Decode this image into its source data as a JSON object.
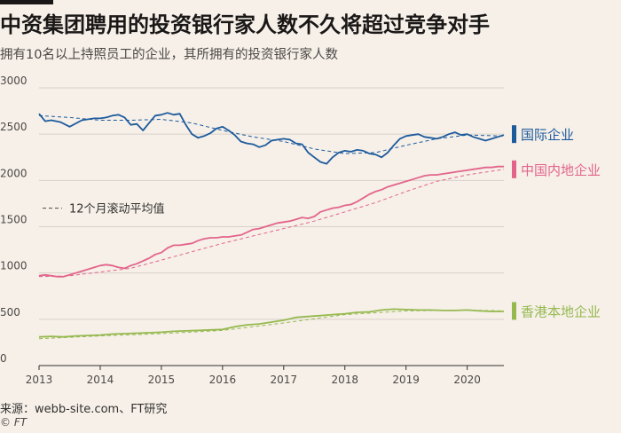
{
  "header": {
    "title": "中资集团聘用的投资银行家人数不久将超过竞争对手",
    "subtitle": "拥有10名以上持照员工的企业，其所拥有的投资银行家人数"
  },
  "footer": {
    "source": "来源：webb-site.com、FT研究",
    "credit": "© FT"
  },
  "chart_data": {
    "type": "line",
    "title": "中资集团聘用的投资银行家人数不久将超过竞争对手",
    "subtitle": "拥有10名以上持照员工的企业，其所拥有的投资银行家人数",
    "xlabel": "",
    "ylabel": "",
    "xlim": [
      2013,
      2020.6
    ],
    "ylim": [
      0,
      3000
    ],
    "x_ticks": [
      "2013",
      "2014",
      "2015",
      "2016",
      "2017",
      "2018",
      "2019",
      "2020"
    ],
    "y_ticks": [
      "0",
      "500",
      "1000",
      "1500",
      "2000",
      "2500",
      "3000"
    ],
    "grid": "horizontal",
    "legend": {
      "label": "12个月滚动平均值",
      "placement": "top-left"
    },
    "colors": {
      "intl": "#1d5a9c",
      "mainland": "#e3648a",
      "hk": "#96b94f",
      "grid": "#d8d1ca",
      "axis": "#33302e"
    },
    "series": [
      {
        "name": "国际企业",
        "color": "#1d5a9c",
        "x": [
          2013.0,
          2013.1,
          2013.2,
          2013.35,
          2013.5,
          2013.7,
          2013.9,
          2014.0,
          2014.1,
          2014.2,
          2014.3,
          2014.4,
          2014.5,
          2014.6,
          2014.7,
          2014.8,
          2014.9,
          2015.0,
          2015.1,
          2015.2,
          2015.3,
          2015.4,
          2015.5,
          2015.6,
          2015.7,
          2015.8,
          2015.9,
          2016.0,
          2016.1,
          2016.2,
          2016.3,
          2016.4,
          2016.5,
          2016.6,
          2016.7,
          2016.8,
          2016.9,
          2017.0,
          2017.1,
          2017.2,
          2017.3,
          2017.4,
          2017.5,
          2017.6,
          2017.7,
          2017.8,
          2017.9,
          2018.0,
          2018.1,
          2018.2,
          2018.3,
          2018.4,
          2018.5,
          2018.6,
          2018.7,
          2018.8,
          2018.9,
          2019.0,
          2019.1,
          2019.2,
          2019.3,
          2019.4,
          2019.5,
          2019.6,
          2019.7,
          2019.8,
          2019.9,
          2020.0,
          2020.1,
          2020.2,
          2020.3,
          2020.4,
          2020.5,
          2020.6
        ],
        "values": [
          2720,
          2640,
          2650,
          2630,
          2580,
          2650,
          2670,
          2670,
          2680,
          2700,
          2710,
          2680,
          2600,
          2610,
          2540,
          2620,
          2700,
          2710,
          2730,
          2710,
          2720,
          2600,
          2500,
          2460,
          2480,
          2510,
          2560,
          2580,
          2540,
          2490,
          2420,
          2400,
          2390,
          2360,
          2380,
          2430,
          2440,
          2450,
          2440,
          2400,
          2390,
          2300,
          2250,
          2200,
          2180,
          2250,
          2300,
          2320,
          2310,
          2330,
          2320,
          2290,
          2280,
          2250,
          2300,
          2380,
          2450,
          2480,
          2490,
          2500,
          2470,
          2460,
          2450,
          2470,
          2500,
          2520,
          2490,
          2500,
          2470,
          2450,
          2430,
          2450,
          2470,
          2490
        ]
      },
      {
        "name": "中国内地企业",
        "color": "#e3648a",
        "x": [
          2013.0,
          2013.1,
          2013.2,
          2013.3,
          2013.4,
          2013.5,
          2013.6,
          2013.7,
          2013.8,
          2013.9,
          2014.0,
          2014.1,
          2014.2,
          2014.3,
          2014.4,
          2014.5,
          2014.6,
          2014.7,
          2014.8,
          2014.9,
          2015.0,
          2015.1,
          2015.2,
          2015.3,
          2015.4,
          2015.5,
          2015.6,
          2015.7,
          2015.8,
          2015.9,
          2016.0,
          2016.1,
          2016.2,
          2016.3,
          2016.4,
          2016.5,
          2016.6,
          2016.7,
          2016.8,
          2016.9,
          2017.0,
          2017.1,
          2017.2,
          2017.3,
          2017.4,
          2017.5,
          2017.6,
          2017.7,
          2017.8,
          2017.9,
          2018.0,
          2018.1,
          2018.2,
          2018.3,
          2018.4,
          2018.5,
          2018.6,
          2018.7,
          2018.8,
          2018.9,
          2019.0,
          2019.1,
          2019.2,
          2019.3,
          2019.4,
          2019.5,
          2019.6,
          2019.7,
          2019.8,
          2019.9,
          2020.0,
          2020.1,
          2020.2,
          2020.3,
          2020.4,
          2020.5,
          2020.6
        ],
        "values": [
          970,
          980,
          970,
          960,
          960,
          980,
          1000,
          1020,
          1040,
          1060,
          1080,
          1090,
          1080,
          1060,
          1050,
          1080,
          1100,
          1130,
          1160,
          1200,
          1220,
          1270,
          1300,
          1300,
          1310,
          1320,
          1350,
          1370,
          1380,
          1380,
          1390,
          1390,
          1400,
          1410,
          1440,
          1470,
          1480,
          1500,
          1520,
          1540,
          1550,
          1560,
          1580,
          1600,
          1590,
          1610,
          1660,
          1680,
          1700,
          1710,
          1730,
          1740,
          1770,
          1810,
          1850,
          1880,
          1900,
          1930,
          1950,
          1970,
          1990,
          2010,
          2030,
          2050,
          2060,
          2060,
          2070,
          2080,
          2090,
          2100,
          2110,
          2120,
          2130,
          2140,
          2140,
          2150,
          2150
        ]
      },
      {
        "name": "香港本地企业",
        "color": "#96b94f",
        "x": [
          2013.0,
          2013.2,
          2013.4,
          2013.6,
          2013.8,
          2014.0,
          2014.2,
          2014.4,
          2014.6,
          2014.8,
          2015.0,
          2015.2,
          2015.4,
          2015.6,
          2015.8,
          2016.0,
          2016.2,
          2016.4,
          2016.6,
          2016.8,
          2017.0,
          2017.2,
          2017.4,
          2017.6,
          2017.8,
          2018.0,
          2018.2,
          2018.4,
          2018.6,
          2018.8,
          2019.0,
          2019.2,
          2019.4,
          2019.6,
          2019.8,
          2020.0,
          2020.2,
          2020.4,
          2020.6
        ],
        "values": [
          310,
          315,
          310,
          320,
          325,
          330,
          340,
          345,
          350,
          355,
          360,
          370,
          375,
          380,
          385,
          390,
          420,
          440,
          450,
          470,
          490,
          520,
          530,
          540,
          550,
          560,
          575,
          580,
          600,
          610,
          605,
          600,
          600,
          595,
          595,
          600,
          590,
          585,
          585
        ]
      }
    ],
    "rolling_avg": [
      {
        "x": [
          2013.0,
          2013.5,
          2014.0,
          2014.5,
          2015.0,
          2015.5,
          2016.0,
          2016.5,
          2017.0,
          2017.5,
          2018.0,
          2018.5,
          2019.0,
          2019.5,
          2020.0,
          2020.6
        ],
        "values": [
          2700,
          2680,
          2650,
          2650,
          2660,
          2620,
          2540,
          2470,
          2420,
          2340,
          2290,
          2300,
          2380,
          2450,
          2490,
          2480
        ]
      },
      {
        "x": [
          2013.0,
          2013.5,
          2014.0,
          2014.5,
          2015.0,
          2015.5,
          2016.0,
          2016.5,
          2017.0,
          2017.5,
          2018.0,
          2018.5,
          2019.0,
          2019.5,
          2020.0,
          2020.6
        ],
        "values": [
          960,
          970,
          1010,
          1050,
          1140,
          1230,
          1320,
          1400,
          1480,
          1560,
          1660,
          1760,
          1880,
          1990,
          2060,
          2120
        ]
      },
      {
        "x": [
          2013.0,
          2014.0,
          2015.0,
          2016.0,
          2017.0,
          2018.0,
          2019.0,
          2020.0,
          2020.6
        ],
        "values": [
          290,
          320,
          345,
          380,
          460,
          550,
          590,
          600,
          590
        ]
      }
    ]
  }
}
